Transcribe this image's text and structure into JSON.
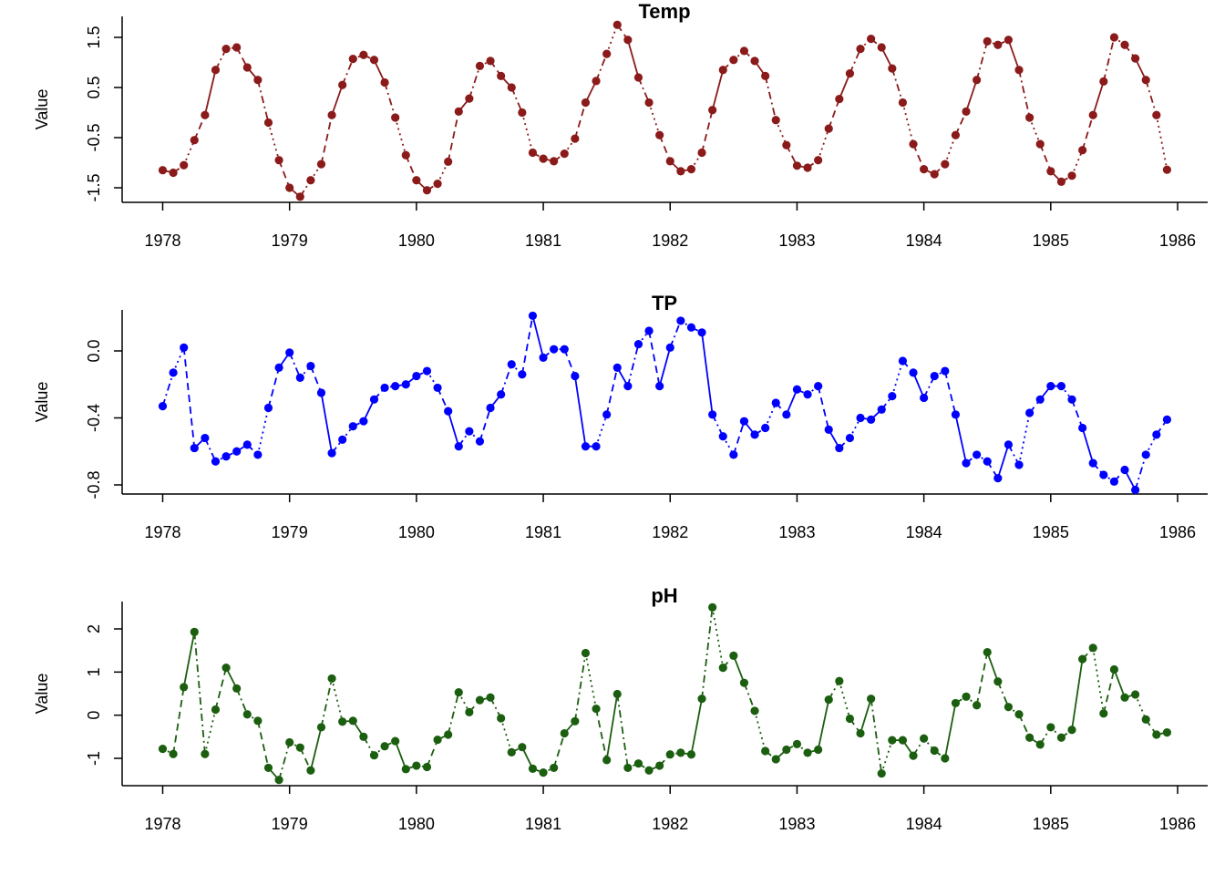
{
  "chart_data": [
    {
      "type": "line",
      "title": "Temp",
      "ylabel": "Value",
      "xlabel": "",
      "color": "#8B1A1A",
      "xlim": [
        1978,
        1986
      ],
      "x_ticks": [
        1978,
        1979,
        1980,
        1981,
        1982,
        1983,
        1984,
        1985,
        1986
      ],
      "x_tick_labels": [
        "1978",
        "1979",
        "1980",
        "1981",
        "1982",
        "1983",
        "1984",
        "1985",
        "1986"
      ],
      "y_ticks": [
        -1.5,
        -0.5,
        0.5,
        1.5
      ],
      "y_tick_labels": [
        "-1.5",
        "-0.5",
        "0.5",
        "1.5"
      ],
      "y_range": [
        -1.7,
        1.78
      ],
      "series": [
        {
          "values": [
            -1.15,
            -1.2,
            -1.05,
            -0.55,
            -0.05,
            0.85,
            1.27,
            1.3,
            0.9,
            0.65,
            -0.2,
            -0.95,
            -1.5,
            -1.68,
            -1.35,
            -1.03,
            -0.05,
            0.55,
            1.07,
            1.15,
            1.05,
            0.6,
            -0.1,
            -0.85,
            -1.35,
            -1.55,
            -1.42,
            -0.98,
            0.02,
            0.28,
            0.93,
            1.03,
            0.73,
            0.5,
            0.0,
            -0.8,
            -0.92,
            -0.97,
            -0.82,
            -0.52,
            0.2,
            0.63,
            1.17,
            1.75,
            1.45,
            0.7,
            0.2,
            -0.45,
            -0.97,
            -1.17,
            -1.13,
            -0.8,
            0.05,
            0.85,
            1.05,
            1.23,
            1.03,
            0.73,
            -0.15,
            -0.65,
            -1.06,
            -1.1,
            -0.95,
            -0.32,
            0.27,
            0.78,
            1.27,
            1.47,
            1.3,
            0.88,
            0.2,
            -0.63,
            -1.13,
            -1.23,
            -1.03,
            -0.45,
            0.02,
            0.65,
            1.42,
            1.35,
            1.45,
            0.85,
            -0.1,
            -0.63,
            -1.17,
            -1.38,
            -1.26,
            -0.75,
            -0.05,
            0.62,
            1.5,
            1.35,
            1.08,
            0.65,
            -0.05,
            -1.14
          ]
        }
      ]
    },
    {
      "type": "line",
      "title": "TP",
      "ylabel": "Value",
      "xlabel": "",
      "color": "#0000FF",
      "xlim": [
        1978,
        1986
      ],
      "x_ticks": [
        1978,
        1979,
        1980,
        1981,
        1982,
        1983,
        1984,
        1985,
        1986
      ],
      "x_tick_labels": [
        "1978",
        "1979",
        "1980",
        "1981",
        "1982",
        "1983",
        "1984",
        "1985",
        "1986"
      ],
      "y_ticks": [
        -0.8,
        -0.4,
        0.0
      ],
      "y_tick_labels": [
        "-0.8",
        "-0.4",
        "0.0"
      ],
      "y_range": [
        -0.86,
        0.24
      ],
      "series": [
        {
          "values": [
            -0.33,
            -0.13,
            0.02,
            -0.58,
            -0.52,
            -0.66,
            -0.63,
            -0.6,
            -0.56,
            -0.62,
            -0.34,
            -0.1,
            -0.01,
            -0.16,
            -0.09,
            -0.25,
            -0.61,
            -0.53,
            -0.45,
            -0.42,
            -0.29,
            -0.22,
            -0.21,
            -0.2,
            -0.15,
            -0.12,
            -0.22,
            -0.36,
            -0.57,
            -0.48,
            -0.54,
            -0.34,
            -0.26,
            -0.08,
            -0.14,
            0.21,
            -0.04,
            0.01,
            0.01,
            -0.15,
            -0.57,
            -0.57,
            -0.38,
            -0.1,
            -0.21,
            0.04,
            0.12,
            -0.21,
            0.02,
            0.18,
            0.14,
            0.11,
            -0.38,
            -0.51,
            -0.62,
            -0.42,
            -0.5,
            -0.46,
            -0.31,
            -0.38,
            -0.23,
            -0.26,
            -0.21,
            -0.47,
            -0.58,
            -0.52,
            -0.4,
            -0.41,
            -0.35,
            -0.27,
            -0.06,
            -0.13,
            -0.28,
            -0.15,
            -0.12,
            -0.38,
            -0.67,
            -0.62,
            -0.66,
            -0.76,
            -0.56,
            -0.68,
            -0.37,
            -0.29,
            -0.21,
            -0.21,
            -0.29,
            -0.46,
            -0.67,
            -0.74,
            -0.78,
            -0.71,
            -0.83,
            -0.62,
            -0.5,
            -0.41
          ]
        }
      ]
    },
    {
      "type": "line",
      "title": "pH",
      "ylabel": "Value",
      "xlabel": "",
      "color": "#1B5E0F",
      "xlim": [
        1978,
        1986
      ],
      "x_ticks": [
        1978,
        1979,
        1980,
        1981,
        1982,
        1983,
        1984,
        1985,
        1986
      ],
      "x_tick_labels": [
        "1978",
        "1979",
        "1980",
        "1981",
        "1982",
        "1983",
        "1984",
        "1985",
        "1986"
      ],
      "y_ticks": [
        -1,
        0,
        1,
        2
      ],
      "y_tick_labels": [
        "-1",
        "0",
        "1",
        "2"
      ],
      "y_range": [
        -1.6,
        2.6
      ],
      "series": [
        {
          "values": [
            -0.78,
            -0.9,
            0.65,
            1.93,
            -0.9,
            0.13,
            1.1,
            0.62,
            0.02,
            -0.13,
            -1.22,
            -1.5,
            -0.63,
            -0.75,
            -1.28,
            -0.28,
            0.85,
            -0.15,
            -0.13,
            -0.5,
            -0.93,
            -0.72,
            -0.6,
            -1.25,
            -1.17,
            -1.2,
            -0.57,
            -0.45,
            0.53,
            0.07,
            0.35,
            0.41,
            -0.07,
            -0.86,
            -0.74,
            -1.24,
            -1.33,
            -1.22,
            -0.42,
            -0.14,
            1.44,
            0.15,
            -1.04,
            0.49,
            -1.22,
            -1.12,
            -1.28,
            -1.17,
            -0.91,
            -0.87,
            -0.91,
            0.38,
            2.5,
            1.1,
            1.38,
            0.75,
            0.1,
            -0.83,
            -1.02,
            -0.8,
            -0.67,
            -0.87,
            -0.8,
            0.36,
            0.79,
            -0.08,
            -0.42,
            0.38,
            -1.35,
            -0.58,
            -0.58,
            -0.94,
            -0.54,
            -0.82,
            -1.0,
            0.28,
            0.43,
            0.23,
            1.46,
            0.78,
            0.19,
            0.02,
            -0.52,
            -0.68,
            -0.28,
            -0.52,
            -0.34,
            1.3,
            1.56,
            0.04,
            1.06,
            0.41,
            0.48,
            -0.1,
            -0.45,
            -0.4
          ]
        }
      ]
    }
  ]
}
